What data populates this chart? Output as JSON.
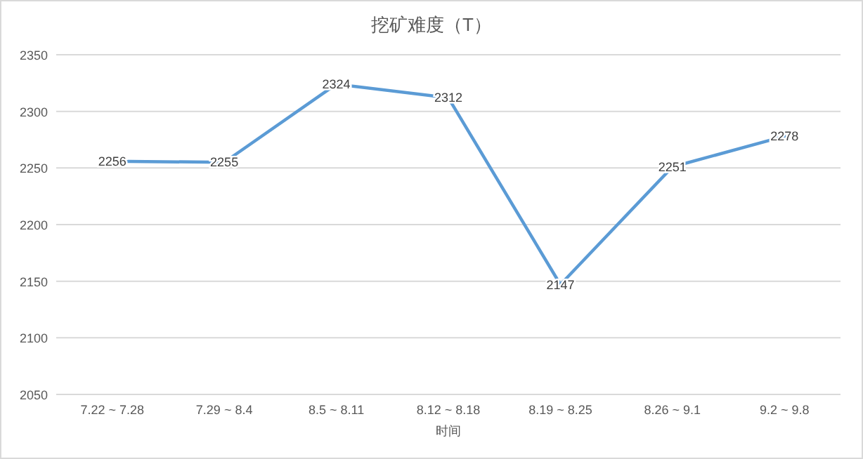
{
  "chart_data": {
    "type": "line",
    "title": "挖矿难度（T）",
    "xlabel": "时间",
    "categories": [
      "7.22 ~ 7.28",
      "7.29 ~ 8.4",
      "8.5 ~ 8.11",
      "8.12 ~ 8.18",
      "8.19 ~ 8.25",
      "8.26 ~ 9.1",
      "9.2 ~ 9.8"
    ],
    "series": [
      {
        "color": "#5b9bd5",
        "values": [
          2256,
          2255,
          2324,
          2312,
          2147,
          2251,
          2278
        ]
      }
    ],
    "ylim": [
      2050,
      2350
    ],
    "yticks": [
      2050,
      2100,
      2150,
      2200,
      2250,
      2300,
      2350
    ],
    "grid": "y",
    "data_labels": true,
    "marker": "none",
    "line_style": "solid"
  }
}
